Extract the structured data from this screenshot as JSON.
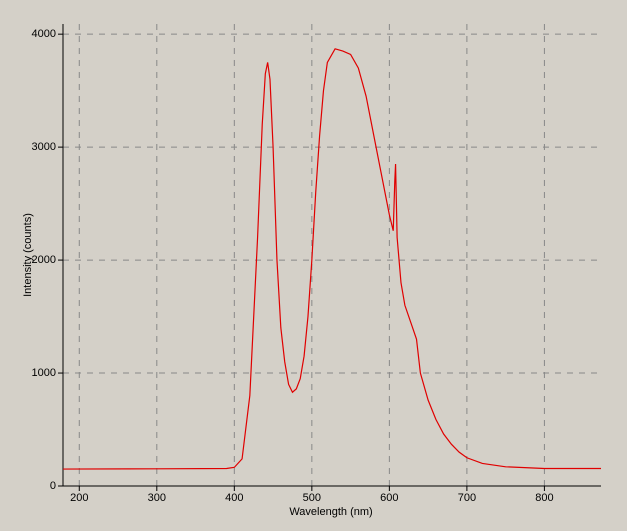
{
  "chart_data": {
    "type": "line",
    "xlabel": "Wavelength (nm)",
    "ylabel": "Intensity (counts)",
    "xlim": [
      179,
      873
    ],
    "ylim": [
      0,
      4090
    ],
    "xticks": [
      200,
      300,
      400,
      500,
      600,
      700,
      800
    ],
    "yticks": [
      0,
      1000,
      2000,
      3000,
      4000
    ],
    "grid": true,
    "series": [
      {
        "color": "#e00000",
        "x": [
          179,
          300,
          390,
          400,
          410,
          420,
          430,
          436,
          440,
          443,
          446,
          450,
          455,
          460,
          465,
          470,
          475,
          480,
          485,
          490,
          495,
          500,
          505,
          510,
          515,
          520,
          530,
          540,
          550,
          560,
          570,
          580,
          590,
          600,
          605,
          607,
          608,
          610,
          615,
          620,
          630,
          635,
          640,
          650,
          660,
          670,
          680,
          690,
          700,
          720,
          750,
          800,
          873
        ],
        "values": [
          150,
          152,
          155,
          165,
          240,
          800,
          2200,
          3200,
          3650,
          3750,
          3600,
          3000,
          2000,
          1400,
          1100,
          900,
          830,
          860,
          950,
          1150,
          1500,
          2000,
          2600,
          3100,
          3500,
          3750,
          3870,
          3850,
          3820,
          3700,
          3450,
          3100,
          2750,
          2400,
          2260,
          2700,
          2850,
          2200,
          1800,
          1600,
          1400,
          1300,
          1000,
          760,
          590,
          460,
          370,
          300,
          250,
          200,
          170,
          155,
          155
        ]
      }
    ]
  }
}
